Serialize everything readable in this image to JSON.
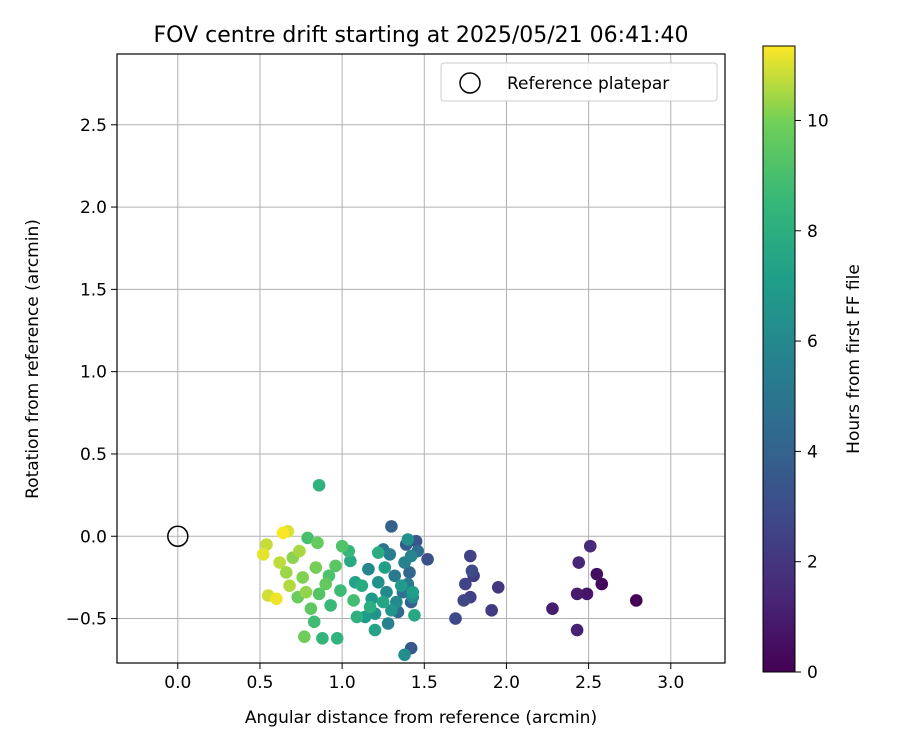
{
  "chart_data": {
    "type": "scatter",
    "title": "FOV centre drift starting at 2025/05/21 06:41:40",
    "xlabel": "Angular distance from reference (arcmin)",
    "ylabel": "Rotation from reference (arcmin)",
    "xlim": [
      -0.37,
      3.33
    ],
    "ylim": [
      -0.77,
      2.93
    ],
    "xticks": [
      0.0,
      0.5,
      1.0,
      1.5,
      2.0,
      2.5,
      3.0
    ],
    "xtick_labels": [
      "0.0",
      "0.5",
      "1.0",
      "1.5",
      "2.0",
      "2.5",
      "3.0"
    ],
    "yticks": [
      -0.5,
      0.0,
      0.5,
      1.0,
      1.5,
      2.0,
      2.5
    ],
    "ytick_labels": [
      "−0.5",
      "0.0",
      "0.5",
      "1.0",
      "1.5",
      "2.0",
      "2.5"
    ],
    "grid": true,
    "legend": {
      "position": "upper-right",
      "entries": [
        {
          "label": "Reference platepar",
          "marker": "open-circle"
        }
      ]
    },
    "reference_point": {
      "x": 0.0,
      "y": 0.0
    },
    "colorbar": {
      "label": "Hours from first FF file",
      "min": 0,
      "max": 11.35,
      "ticks": [
        0,
        2,
        4,
        6,
        8,
        10
      ],
      "tick_labels": [
        "0",
        "2",
        "4",
        "6",
        "8",
        "10"
      ],
      "colormap": "viridis"
    },
    "series": [
      {
        "points": [
          {
            "x": 2.79,
            "y": -0.39,
            "h": 0.1
          },
          {
            "x": 2.58,
            "y": -0.29,
            "h": 0.3
          },
          {
            "x": 2.55,
            "y": -0.23,
            "h": 0.5
          },
          {
            "x": 2.49,
            "y": -0.35,
            "h": 0.7
          },
          {
            "x": 2.43,
            "y": -0.35,
            "h": 0.9
          },
          {
            "x": 2.28,
            "y": -0.44,
            "h": 1.0
          },
          {
            "x": 2.43,
            "y": -0.57,
            "h": 1.2
          },
          {
            "x": 2.44,
            "y": -0.16,
            "h": 1.4
          },
          {
            "x": 2.51,
            "y": -0.06,
            "h": 1.5
          },
          {
            "x": 1.95,
            "y": -0.31,
            "h": 2.0
          },
          {
            "x": 1.91,
            "y": -0.45,
            "h": 2.2
          },
          {
            "x": 1.8,
            "y": -0.24,
            "h": 2.3
          },
          {
            "x": 1.78,
            "y": -0.37,
            "h": 2.4
          },
          {
            "x": 1.78,
            "y": -0.12,
            "h": 2.5
          },
          {
            "x": 1.75,
            "y": -0.29,
            "h": 2.6
          },
          {
            "x": 1.74,
            "y": -0.39,
            "h": 2.7
          },
          {
            "x": 1.69,
            "y": -0.5,
            "h": 2.8
          },
          {
            "x": 1.79,
            "y": -0.21,
            "h": 2.9
          },
          {
            "x": 1.52,
            "y": -0.14,
            "h": 3.1
          },
          {
            "x": 1.45,
            "y": -0.03,
            "h": 3.3
          },
          {
            "x": 1.42,
            "y": -0.68,
            "h": 3.5
          },
          {
            "x": 1.39,
            "y": -0.05,
            "h": 3.7
          },
          {
            "x": 1.42,
            "y": -0.4,
            "h": 3.9
          },
          {
            "x": 1.3,
            "y": 0.06,
            "h": 4.0
          },
          {
            "x": 1.41,
            "y": -0.22,
            "h": 4.2
          },
          {
            "x": 1.34,
            "y": -0.46,
            "h": 4.4
          },
          {
            "x": 1.46,
            "y": -0.09,
            "h": 4.6
          },
          {
            "x": 1.37,
            "y": -0.34,
            "h": 4.8
          },
          {
            "x": 1.25,
            "y": -0.08,
            "h": 5.0
          },
          {
            "x": 1.32,
            "y": -0.24,
            "h": 5.2
          },
          {
            "x": 1.4,
            "y": -0.29,
            "h": 5.3
          },
          {
            "x": 1.29,
            "y": -0.11,
            "h": 5.4
          },
          {
            "x": 1.38,
            "y": -0.16,
            "h": 5.6
          },
          {
            "x": 1.28,
            "y": -0.53,
            "h": 5.7
          },
          {
            "x": 1.42,
            "y": -0.12,
            "h": 5.8
          },
          {
            "x": 1.16,
            "y": -0.2,
            "h": 5.9
          },
          {
            "x": 1.33,
            "y": -0.4,
            "h": 6.0
          },
          {
            "x": 1.27,
            "y": -0.34,
            "h": 6.1
          },
          {
            "x": 1.43,
            "y": -0.37,
            "h": 6.2
          },
          {
            "x": 1.38,
            "y": -0.72,
            "h": 6.3
          },
          {
            "x": 1.4,
            "y": -0.02,
            "h": 6.4
          },
          {
            "x": 1.22,
            "y": -0.28,
            "h": 6.5
          },
          {
            "x": 1.2,
            "y": -0.47,
            "h": 6.6
          },
          {
            "x": 1.3,
            "y": -0.45,
            "h": 6.7
          },
          {
            "x": 1.18,
            "y": -0.38,
            "h": 6.8
          },
          {
            "x": 1.36,
            "y": -0.3,
            "h": 6.9
          },
          {
            "x": 1.14,
            "y": -0.49,
            "h": 7.0
          },
          {
            "x": 1.43,
            "y": -0.34,
            "h": 7.1
          },
          {
            "x": 1.26,
            "y": -0.19,
            "h": 7.2
          },
          {
            "x": 1.08,
            "y": -0.28,
            "h": 7.3
          },
          {
            "x": 1.2,
            "y": -0.57,
            "h": 7.4
          },
          {
            "x": 1.25,
            "y": -0.4,
            "h": 7.5
          },
          {
            "x": 1.44,
            "y": -0.48,
            "h": 7.6
          },
          {
            "x": 1.05,
            "y": -0.15,
            "h": 7.7
          },
          {
            "x": 1.12,
            "y": -0.3,
            "h": 7.8
          },
          {
            "x": 1.22,
            "y": -0.1,
            "h": 7.9
          },
          {
            "x": 1.17,
            "y": -0.43,
            "h": 8.0
          },
          {
            "x": 1.09,
            "y": -0.49,
            "h": 8.1
          },
          {
            "x": 0.86,
            "y": 0.31,
            "h": 8.2
          },
          {
            "x": 0.97,
            "y": -0.62,
            "h": 8.3
          },
          {
            "x": 0.88,
            "y": -0.62,
            "h": 8.4
          },
          {
            "x": 1.04,
            "y": -0.09,
            "h": 8.5
          },
          {
            "x": 0.93,
            "y": -0.42,
            "h": 8.6
          },
          {
            "x": 0.99,
            "y": -0.33,
            "h": 8.7
          },
          {
            "x": 0.83,
            "y": -0.52,
            "h": 8.8
          },
          {
            "x": 1.07,
            "y": -0.39,
            "h": 8.9
          },
          {
            "x": 0.79,
            "y": -0.01,
            "h": 9.0
          },
          {
            "x": 0.92,
            "y": -0.24,
            "h": 9.1
          },
          {
            "x": 1.0,
            "y": -0.06,
            "h": 9.2
          },
          {
            "x": 0.86,
            "y": -0.35,
            "h": 9.3
          },
          {
            "x": 0.96,
            "y": -0.18,
            "h": 9.4
          },
          {
            "x": 0.81,
            "y": -0.44,
            "h": 9.5
          },
          {
            "x": 0.9,
            "y": -0.29,
            "h": 9.6
          },
          {
            "x": 0.85,
            "y": -0.04,
            "h": 9.7
          },
          {
            "x": 0.73,
            "y": -0.37,
            "h": 9.8
          },
          {
            "x": 0.77,
            "y": -0.61,
            "h": 9.9
          },
          {
            "x": 0.84,
            "y": -0.19,
            "h": 10.0
          },
          {
            "x": 0.76,
            "y": -0.25,
            "h": 10.1
          },
          {
            "x": 0.7,
            "y": -0.13,
            "h": 10.2
          },
          {
            "x": 0.78,
            "y": -0.34,
            "h": 10.3
          },
          {
            "x": 0.66,
            "y": -0.22,
            "h": 10.4
          },
          {
            "x": 0.74,
            "y": -0.09,
            "h": 10.5
          },
          {
            "x": 0.68,
            "y": -0.3,
            "h": 10.6
          },
          {
            "x": 0.62,
            "y": -0.16,
            "h": 10.7
          },
          {
            "x": 0.54,
            "y": -0.05,
            "h": 10.8
          },
          {
            "x": 0.55,
            "y": -0.36,
            "h": 10.9
          },
          {
            "x": 0.67,
            "y": 0.03,
            "h": 11.0
          },
          {
            "x": 0.52,
            "y": -0.11,
            "h": 11.1
          },
          {
            "x": 0.6,
            "y": -0.38,
            "h": 11.2
          },
          {
            "x": 0.64,
            "y": 0.02,
            "h": 11.3
          }
        ]
      }
    ]
  }
}
